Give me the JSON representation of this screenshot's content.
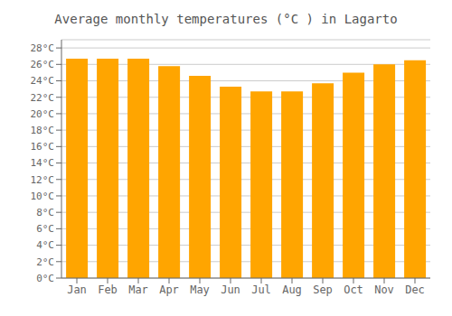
{
  "chart_data": {
    "type": "bar",
    "title": "Average monthly temperatures (°C ) in Lagarto",
    "categories": [
      "Jan",
      "Feb",
      "Mar",
      "Apr",
      "May",
      "Jun",
      "Jul",
      "Aug",
      "Sep",
      "Oct",
      "Nov",
      "Dec"
    ],
    "values": [
      26.7,
      26.7,
      26.7,
      25.8,
      24.6,
      23.3,
      22.7,
      22.7,
      23.7,
      25.0,
      26.0,
      26.5
    ],
    "color": "#FFA500",
    "ylim": [
      0,
      29
    ],
    "yticks": [
      {
        "value": 0,
        "label": "0°C"
      },
      {
        "value": 2,
        "label": "2°C"
      },
      {
        "value": 4,
        "label": "4°C"
      },
      {
        "value": 6,
        "label": "6°C"
      },
      {
        "value": 8,
        "label": "8°C"
      },
      {
        "value": 10,
        "label": "10°C"
      },
      {
        "value": 12,
        "label": "12°C"
      },
      {
        "value": 14,
        "label": "14°C"
      },
      {
        "value": 16,
        "label": "16°C"
      },
      {
        "value": 18,
        "label": "18°C"
      },
      {
        "value": 20,
        "label": "20°C"
      },
      {
        "value": 22,
        "label": "22°C"
      },
      {
        "value": 24,
        "label": "24°C"
      },
      {
        "value": 26,
        "label": "26°C"
      },
      {
        "value": 28,
        "label": "28°C"
      }
    ],
    "grid": true
  }
}
